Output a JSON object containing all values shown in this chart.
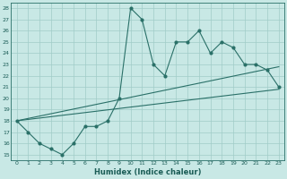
{
  "xlabel": "Humidex (Indice chaleur)",
  "bg_color": "#c8e8e5",
  "grid_color": "#a0ccc8",
  "line_color": "#2a7068",
  "xlim": [
    -0.5,
    23.5
  ],
  "ylim": [
    14.5,
    28.5
  ],
  "yticks": [
    15,
    16,
    17,
    18,
    19,
    20,
    21,
    22,
    23,
    24,
    25,
    26,
    27,
    28
  ],
  "xtick_labels": [
    "0",
    "1",
    "2",
    "3",
    "4",
    "5",
    "6",
    "7",
    "8",
    "9",
    "10",
    "11",
    "12",
    "13",
    "14",
    "15",
    "16",
    "17",
    "18",
    "19",
    "20",
    "21",
    "22",
    "23"
  ],
  "main_y": [
    18,
    17,
    16,
    15.5,
    15,
    16,
    17.5,
    17.5,
    18,
    20,
    28,
    27,
    23,
    22,
    25,
    25,
    26,
    24,
    25,
    24.5,
    23,
    23,
    22.5,
    21
  ],
  "line2_x": [
    0,
    23
  ],
  "line2_y": [
    18.0,
    22.8
  ],
  "line3_x": [
    0,
    23
  ],
  "line3_y": [
    18.0,
    20.8
  ]
}
